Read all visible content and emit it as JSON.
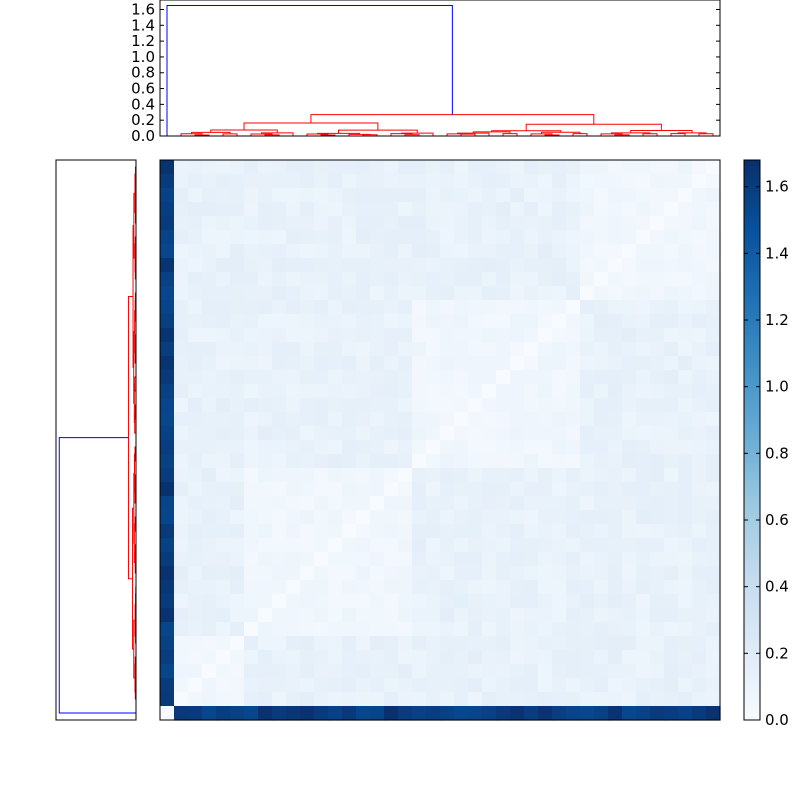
{
  "chart_data": {
    "type": "heatmap",
    "title": "",
    "xlabel": "",
    "ylabel": "",
    "n": 40,
    "outlier_index": 39,
    "outlier_distance": 1.65,
    "group_sizes": [
      10,
      12,
      12,
      5,
      1
    ],
    "within_group_distance": 0.06,
    "between_group_distance": 0.12,
    "colormap": [
      "#f7fbff",
      "#deebf7",
      "#c6dbef",
      "#9ecae1",
      "#6baed6",
      "#4292c6",
      "#2171b5",
      "#08519c",
      "#08306b"
    ],
    "vmin": 0.0,
    "vmax": 1.68,
    "colorbar": {
      "ticks": [
        0.0,
        0.2,
        0.4,
        0.6,
        0.8,
        1.0,
        1.2,
        1.4,
        1.6
      ],
      "tick_labels": [
        "0.0",
        "0.2",
        "0.4",
        "0.6",
        "0.8",
        "1.0",
        "1.2",
        "1.4",
        "1.6"
      ]
    },
    "top_dendrogram": {
      "ylim": [
        0.0,
        1.72
      ],
      "ticks": [
        0.0,
        0.2,
        0.4,
        0.6,
        0.8,
        1.0,
        1.2,
        1.4,
        1.6
      ],
      "tick_labels": [
        "0.0",
        "0.2",
        "0.4",
        "0.6",
        "0.8",
        "1.0",
        "1.2",
        "1.4",
        "1.6"
      ],
      "root_height": 1.65,
      "cluster_height": 0.27,
      "link_colors": {
        "above_threshold": "#0000ff",
        "clusters": "#ff0000"
      }
    },
    "left_dendrogram": {
      "root_height": 1.65,
      "cluster_height": 0.27,
      "xlim": [
        0.0,
        1.72
      ]
    }
  }
}
